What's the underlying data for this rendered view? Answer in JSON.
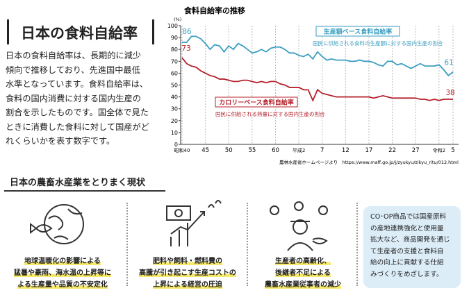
{
  "title": "日本の食料自給率",
  "description": [
    "日本の食料自給率は、長期的に減少",
    "傾向で推移しており、先進国中最低",
    "水準となっています。食料自給率は、",
    "食料の国内消費に対する国内生産の",
    "割合を示したものです。国全体で見た",
    "ときに消費した食料に対して国産がど",
    "れくらいかを表す数字です。"
  ],
  "chart_data": {
    "type": "line",
    "title": "食料自給率の推移",
    "y_unit": "(%)",
    "categories": [
      "昭和40",
      null,
      null,
      null,
      null,
      "45",
      null,
      null,
      null,
      null,
      "50",
      null,
      null,
      null,
      null,
      "55",
      null,
      null,
      null,
      null,
      "60",
      null,
      null,
      null,
      null,
      "平成2",
      null,
      null,
      null,
      null,
      "7",
      null,
      null,
      null,
      null,
      "12",
      null,
      null,
      null,
      null,
      "17",
      null,
      null,
      null,
      null,
      "22",
      null,
      null,
      null,
      null,
      "27",
      null,
      null,
      null,
      null,
      "令和2",
      null,
      null,
      "5"
    ],
    "ylim": [
      0,
      100
    ],
    "yticks": [
      0,
      10,
      20,
      30,
      40,
      50,
      60,
      70,
      80,
      90,
      100
    ],
    "series": [
      {
        "name": "生産額ベース食料自給率",
        "description": "国民に供給される食料の生産額に対する国内生産の割合",
        "color": "#3a9ec0",
        "values": [
          86,
          86,
          91,
          91,
          89,
          85,
          80,
          84,
          83,
          78,
          83,
          80,
          85,
          83,
          80,
          77,
          78,
          80,
          78,
          81,
          82,
          82,
          80,
          77,
          77,
          75,
          74,
          76,
          72,
          78,
          74,
          71,
          72,
          71,
          71,
          71,
          70,
          70,
          71,
          70,
          70,
          69,
          67,
          66,
          70,
          70,
          67,
          68,
          66,
          64,
          66,
          68,
          66,
          66,
          66,
          67,
          63,
          58,
          61
        ]
      },
      {
        "name": "カロリーベース食料自給率",
        "description": "国民に供給される熱量に対する国内生産の割合",
        "color": "#b5202b",
        "values": [
          73,
          68,
          66,
          65,
          62,
          60,
          58,
          57,
          55,
          55,
          54,
          53,
          53,
          54,
          54,
          53,
          52,
          53,
          52,
          53,
          53,
          51,
          50,
          48,
          48,
          48,
          46,
          46,
          37,
          46,
          43,
          42,
          41,
          40,
          40,
          40,
          40,
          40,
          40,
          40,
          40,
          39,
          40,
          41,
          40,
          39,
          39,
          39,
          39,
          39,
          39,
          38,
          38,
          37,
          38,
          37,
          38,
          38,
          38
        ]
      }
    ],
    "source": "農林水産省ホームページより　https://www.maff.go.jp/j/zyukyu/zikyu_ritu/012.html"
  },
  "section": {
    "title": "日本の農畜水産業をとりまく現状",
    "items": [
      [
        "地球温暖化の影響による",
        "猛暑や豪雨、海水温の上昇等に",
        "よる生産量や品質の不安定化"
      ],
      [
        "肥料や飼料・燃料費の",
        "高騰が引き起こす生産コストの",
        "上昇による経営の圧迫"
      ],
      [
        "生産者の高齢化、",
        "後継者不足による",
        "農畜水産業従事者の減少"
      ]
    ],
    "note": [
      "CO･OP商品では国産原料",
      "の産地連携強化と使用量",
      "拡大など、商品開発を通じ",
      "て生産者の支援と食料自",
      "給の向上に貢献する仕組",
      "みづくりをめざします。"
    ]
  }
}
